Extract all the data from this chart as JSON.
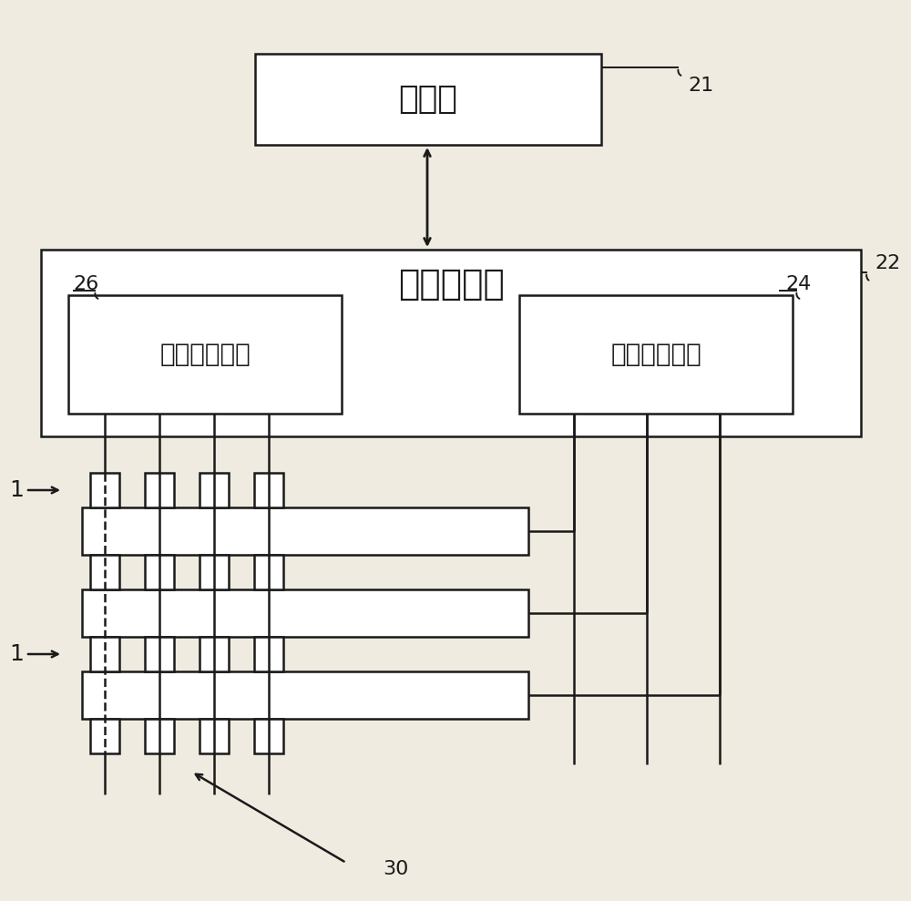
{
  "bg_color": "#f0ebe0",
  "line_color": "#1a1a1a",
  "box_fill": "#ffffff",
  "processor_label": "处理器",
  "array_driver_label": "阵列驱动器",
  "col_driver_label": "列驱动器电路",
  "row_driver_label": "行驱动器电路",
  "label_21": "21",
  "label_22": "22",
  "label_24": "24",
  "label_26": "26",
  "label_30": "30",
  "label_1": "1"
}
